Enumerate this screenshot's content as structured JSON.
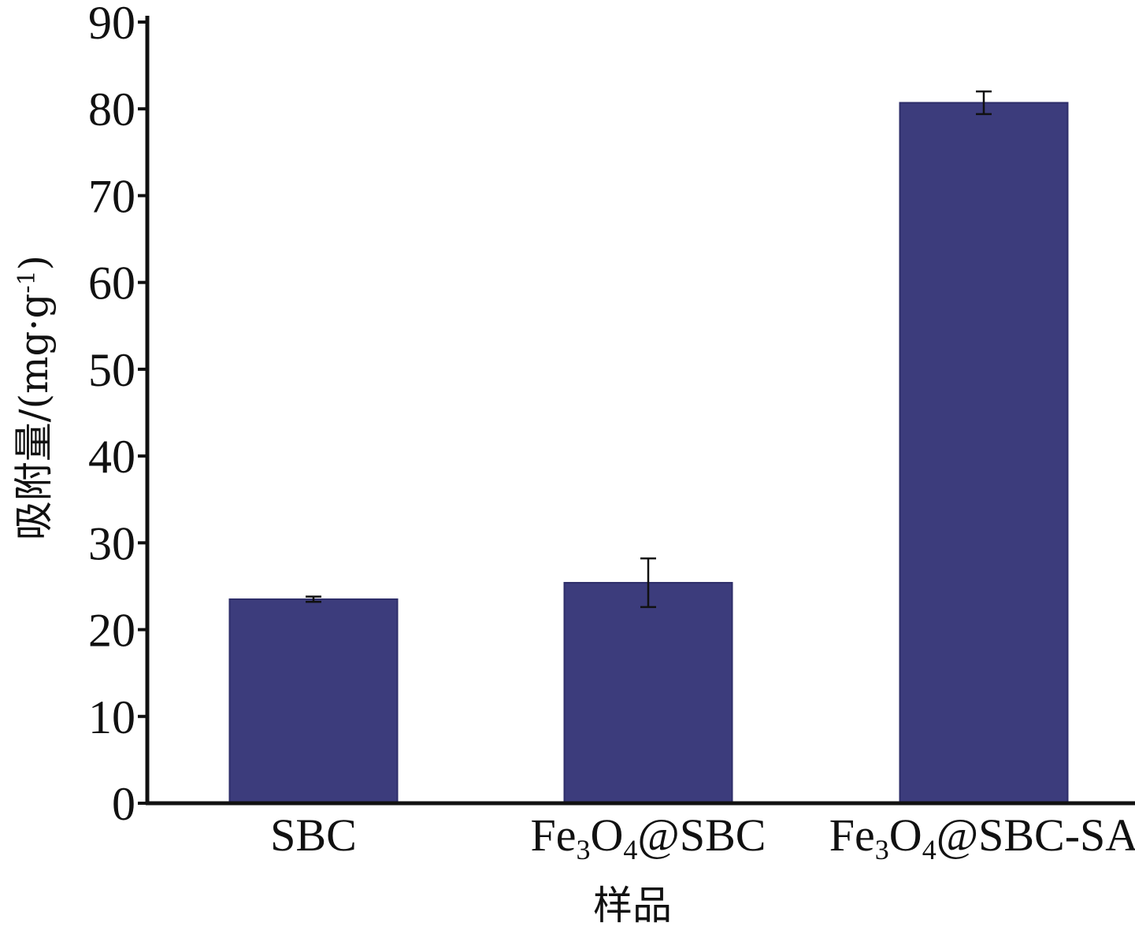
{
  "chart_data": {
    "type": "bar",
    "categories": [
      "SBC",
      "Fe3O4@SBC",
      "Fe3O4@SBC-SA"
    ],
    "category_labels": [
      [
        {
          "t": "SBC"
        }
      ],
      [
        {
          "t": "Fe"
        },
        {
          "t": "3",
          "sub": true
        },
        {
          "t": "O"
        },
        {
          "t": "4",
          "sub": true
        },
        {
          "t": "@SBC"
        }
      ],
      [
        {
          "t": "Fe"
        },
        {
          "t": "3",
          "sub": true
        },
        {
          "t": "O"
        },
        {
          "t": "4",
          "sub": true
        },
        {
          "t": "@SBC-SA"
        }
      ]
    ],
    "values": [
      23.5,
      25.4,
      80.7
    ],
    "errors": [
      0.3,
      2.8,
      1.3
    ],
    "xlabel": "样品",
    "ylabel": [
      {
        "t": "吸附量/(mg·g"
      },
      {
        "t": "-1",
        "sup": true
      },
      {
        "t": ")"
      }
    ],
    "ylim": [
      0,
      90
    ],
    "yticks": [
      0,
      10,
      20,
      30,
      40,
      50,
      60,
      70,
      80,
      90
    ],
    "bar_color": "#3c3c7c",
    "grid": false
  }
}
